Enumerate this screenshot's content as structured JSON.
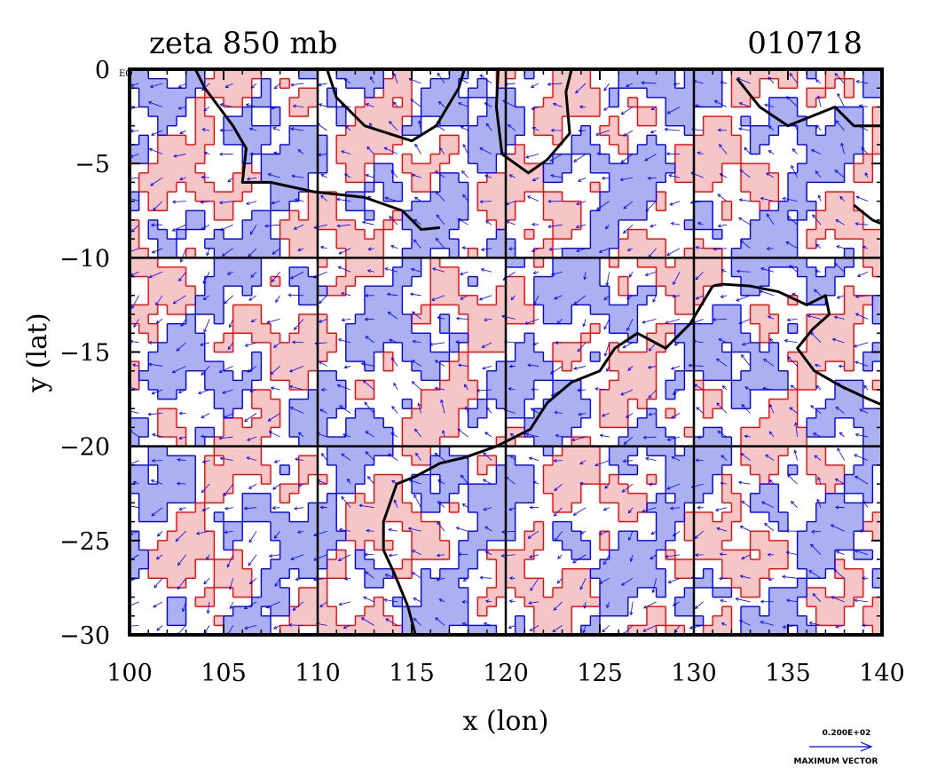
{
  "chart_data": {
    "type": "heatmap",
    "title": "zeta 850 mb",
    "date_label": "010718",
    "xlabel": "x (lon)",
    "ylabel": "y (lat)",
    "xlim": [
      100,
      140
    ],
    "ylim": [
      -30,
      0
    ],
    "x_ticks": [
      100,
      105,
      110,
      115,
      120,
      125,
      130,
      135,
      140
    ],
    "y_ticks": [
      0,
      -5,
      -10,
      -15,
      -20,
      -25,
      -30
    ],
    "grid_lines_x": [
      110,
      120,
      130
    ],
    "grid_lines_y": [
      -10,
      -20
    ],
    "equator_label": "EQ",
    "fill_colors": {
      "positive": "#f5c6c6",
      "negative": "#aab0f0"
    },
    "contour_colors": {
      "positive": "#ff0000",
      "negative": "#0000ff"
    },
    "vector_color": "#0000ff",
    "coast_color": "#000000",
    "reference_vector": {
      "value_label": "0.200E+02",
      "caption": "MAXIMUM VECTOR"
    }
  }
}
